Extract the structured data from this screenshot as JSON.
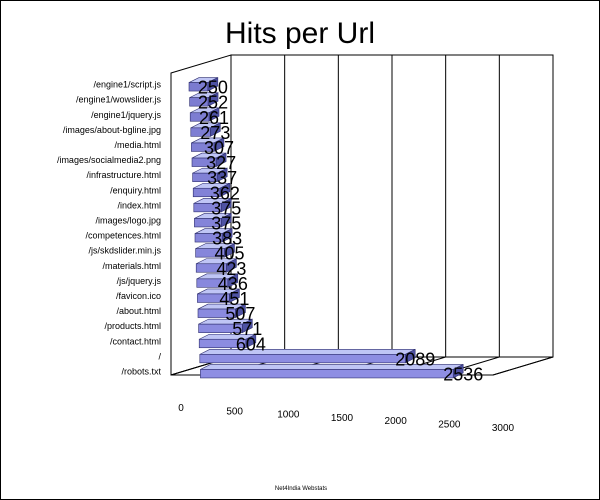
{
  "colors": {
    "bar_front": "#7f7fd4",
    "bar_top": "#bfc5f5",
    "bar_side": "#4e52a3",
    "bar_stroke": "#2f2f6f",
    "grid": "#000000",
    "text": "#000000"
  },
  "chart_data": {
    "type": "bar",
    "orientation": "horizontal",
    "three_d": true,
    "title": "Hits per Url",
    "footer": "Net4India Webstats",
    "xlabel": "",
    "ylabel": "",
    "xlim": [
      0,
      3000
    ],
    "xticks": [
      0,
      500,
      1000,
      1500,
      2000,
      2500,
      3000
    ],
    "grid": true,
    "legend": "none",
    "categories": [
      "/engine1/script.js",
      "/engine1/wowslider.js",
      "/engine1/jquery.js",
      "/images/about-bgline.jpg",
      "/media.html",
      "/images/socialmedia2.png",
      "/infrastructure.html",
      "/enquiry.html",
      "/index.html",
      "/images/logo.jpg",
      "/competences.html",
      "/js/skdslider.min.js",
      "/materials.html",
      "/js/jquery.js",
      "/favicon.ico",
      "/about.html",
      "/products.html",
      "/contact.html",
      "/",
      "/robots.txt"
    ],
    "values": [
      250,
      252,
      261,
      273,
      307,
      327,
      337,
      362,
      375,
      375,
      383,
      405,
      423,
      436,
      451,
      507,
      571,
      604,
      2089,
      2536
    ],
    "value_labels": [
      "250",
      "252",
      "261",
      "273",
      "307",
      "327",
      "337",
      "362",
      "375",
      "375",
      "383",
      "405",
      "423",
      "436",
      "451",
      "507",
      "571",
      "604",
      "2089",
      "2536"
    ]
  }
}
